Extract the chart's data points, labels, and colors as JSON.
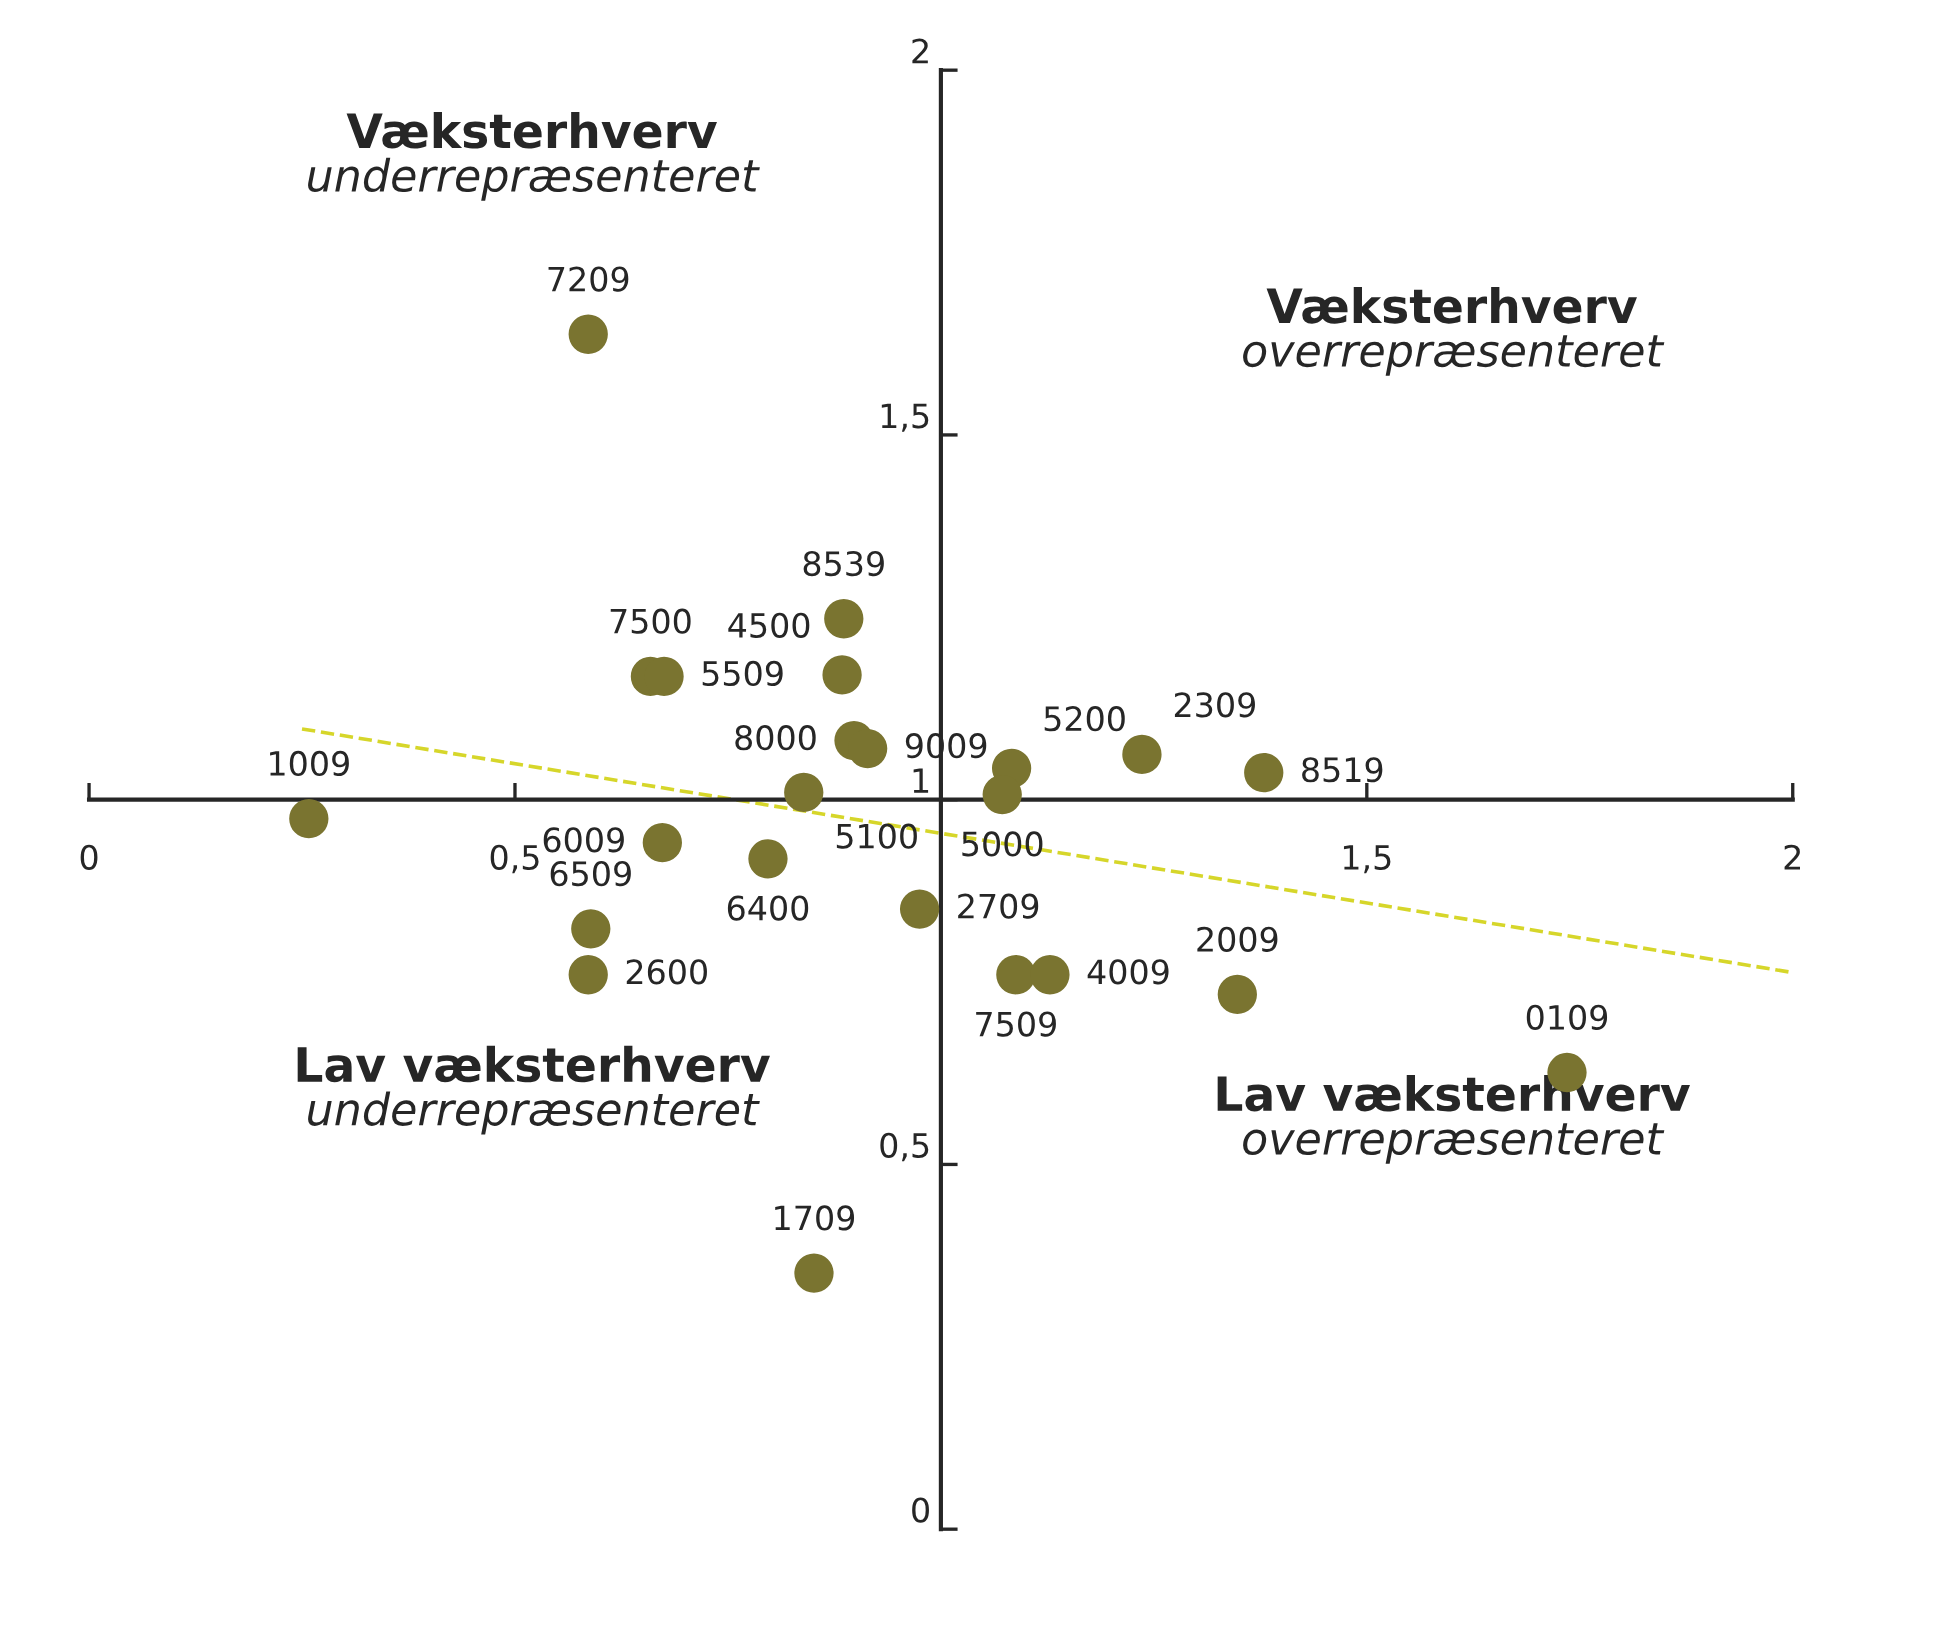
{
  "chart_data": {
    "type": "scatter",
    "annotations": [
      "Væksterhverv",
      "underrepræsenteret",
      "Væksterhverv",
      "overrepræsenteret",
      "Lav væksterhverv",
      "underrepræsenteret",
      "Lav væksterhverv",
      "overrepræsenteret",
      {
        "text": "7209",
        "x": 0.586,
        "y": 1.638
      },
      {
        "text": "7500",
        "x": 0.659,
        "y": 1.169
      },
      {
        "text": "5509",
        "x": 0.675,
        "y": 1.169
      },
      {
        "text": "8539",
        "x": 0.886,
        "y": 1.248
      },
      {
        "text": "4500",
        "x": 0.884,
        "y": 1.171
      },
      {
        "text": "8000",
        "x": 0.898,
        "y": 1.081
      },
      {
        "text": "9009",
        "x": 0.914,
        "y": 1.07
      },
      {
        "text": "5100",
        "x": 0.839,
        "y": 1.01
      },
      {
        "text": "6400",
        "x": 0.797,
        "y": 0.919
      },
      {
        "text": "6009",
        "x": 0.673,
        "y": 0.941
      },
      {
        "text": "6509",
        "x": 0.589,
        "y": 0.823
      },
      {
        "text": "2600",
        "x": 0.586,
        "y": 0.76
      },
      {
        "text": "1009",
        "x": 0.258,
        "y": 0.974
      },
      {
        "text": "2709",
        "x": 0.975,
        "y": 0.85
      },
      {
        "text": "5200",
        "x": 1.083,
        "y": 1.043
      },
      {
        "text": "5000",
        "x": 1.072,
        "y": 1.007
      },
      {
        "text": "2309",
        "x": 1.236,
        "y": 1.062
      },
      {
        "text": "8519",
        "x": 1.379,
        "y": 1.037
      },
      {
        "text": "7509",
        "x": 1.088,
        "y": 0.76
      },
      {
        "text": "4009",
        "x": 1.128,
        "y": 0.76
      },
      {
        "text": "2009",
        "x": 1.348,
        "y": 0.733
      },
      {
        "text": "0109",
        "x": 1.735,
        "y": 0.626
      },
      {
        "text": "1709",
        "x": 0.851,
        "y": 0.351
      }
    ],
    "xlim": [
      0,
      2
    ],
    "ylim": [
      0,
      2
    ],
    "xticks": [
      0,
      {
        "value": 0.5,
        "label": "0,5"
      },
      {
        "value": 1,
        "label": null
      },
      {
        "value": 1.5,
        "label": "1,5"
      },
      2
    ],
    "yticks": [
      0,
      {
        "value": 0.5,
        "label": "0,5"
      },
      1,
      {
        "value": 1.5,
        "label": "1,5"
      },
      2
    ],
    "grid": false,
    "legend": false,
    "marker": "circle",
    "series": [
      {
        "type": "scatter",
        "color": "#7a7430",
        "x": [
          0.586,
          0.659,
          0.675,
          0.886,
          0.884,
          0.898,
          0.914,
          0.839,
          0.797,
          0.673,
          0.589,
          0.586,
          0.258,
          0.975,
          1.083,
          1.072,
          1.236,
          1.379,
          1.088,
          1.128,
          1.348,
          1.735,
          0.851
        ],
        "values": [
          1.638,
          1.169,
          1.169,
          1.248,
          1.171,
          1.081,
          1.07,
          1.01,
          0.919,
          0.941,
          0.823,
          0.76,
          0.974,
          0.85,
          1.043,
          1.007,
          1.062,
          1.037,
          0.76,
          0.76,
          0.733,
          0.626,
          0.351
        ]
      },
      {
        "type": "line",
        "color": "#d6d62a",
        "line_style": "dashed",
        "marker": "none",
        "x": [
          0.25,
          2
        ],
        "values": [
          1.097,
          0.763
        ]
      }
    ]
  }
}
